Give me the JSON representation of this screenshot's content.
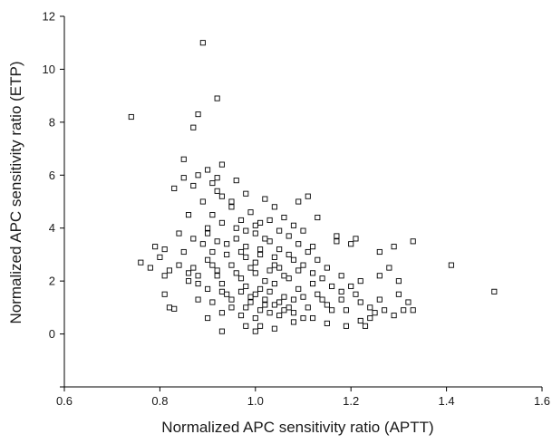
{
  "chart_data": {
    "type": "scatter",
    "xlabel": "Normalized APC sensitivity ratio (APTT)",
    "ylabel": "Normalized APC sensitivity ratio (ETP)",
    "xlim": [
      0.6,
      1.6
    ],
    "ylim": [
      -2,
      12
    ],
    "x_ticks": [
      "0.6",
      "0.8",
      "1.0",
      "1.2",
      "1.4",
      "1.6"
    ],
    "y_ticks": [
      "0",
      "2",
      "4",
      "6",
      "8",
      "10",
      "12"
    ],
    "marker": "open-square",
    "grid": false,
    "legend": "none",
    "series": [
      {
        "points": [
          [
            0.74,
            8.2
          ],
          [
            0.87,
            7.8
          ],
          [
            0.89,
            11.0
          ],
          [
            0.88,
            8.3
          ],
          [
            0.92,
            8.9
          ],
          [
            0.85,
            6.6
          ],
          [
            0.9,
            6.2
          ],
          [
            0.93,
            6.4
          ],
          [
            0.88,
            6.0
          ],
          [
            0.92,
            5.9
          ],
          [
            0.85,
            5.9
          ],
          [
            0.83,
            5.5
          ],
          [
            0.87,
            5.6
          ],
          [
            0.91,
            5.7
          ],
          [
            0.96,
            5.8
          ],
          [
            0.98,
            5.3
          ],
          [
            0.92,
            5.4
          ],
          [
            0.93,
            5.2
          ],
          [
            0.89,
            5.0
          ],
          [
            1.02,
            5.1
          ],
          [
            1.11,
            5.2
          ],
          [
            1.09,
            5.0
          ],
          [
            0.86,
            4.5
          ],
          [
            0.91,
            4.5
          ],
          [
            0.95,
            4.8
          ],
          [
            1.04,
            4.8
          ],
          [
            0.97,
            4.3
          ],
          [
            1.01,
            4.2
          ],
          [
            1.06,
            4.4
          ],
          [
            1.08,
            4.1
          ],
          [
            1.13,
            4.4
          ],
          [
            1.1,
            3.9
          ],
          [
            1.17,
            3.7
          ],
          [
            1.21,
            3.6
          ],
          [
            1.17,
            3.5
          ],
          [
            1.26,
            3.1
          ],
          [
            1.29,
            3.3
          ],
          [
            1.33,
            3.5
          ],
          [
            1.2,
            3.4
          ],
          [
            0.79,
            3.3
          ],
          [
            0.81,
            3.2
          ],
          [
            0.8,
            2.9
          ],
          [
            0.85,
            3.1
          ],
          [
            0.82,
            2.4
          ],
          [
            0.84,
            2.6
          ],
          [
            0.86,
            2.3
          ],
          [
            0.76,
            2.7
          ],
          [
            0.78,
            2.5
          ],
          [
            0.81,
            2.2
          ],
          [
            0.86,
            2.0
          ],
          [
            0.88,
            2.2
          ],
          [
            0.81,
            1.5
          ],
          [
            0.82,
            1.0
          ],
          [
            0.83,
            0.95
          ],
          [
            0.88,
            1.3
          ],
          [
            0.9,
            0.6
          ],
          [
            0.93,
            0.1
          ],
          [
            0.98,
            0.3
          ],
          [
            1.0,
            0.1
          ],
          [
            1.01,
            0.3
          ],
          [
            1.04,
            0.2
          ],
          [
            1.08,
            0.45
          ],
          [
            1.12,
            0.6
          ],
          [
            1.15,
            0.4
          ],
          [
            1.19,
            0.3
          ],
          [
            1.22,
            0.5
          ],
          [
            1.23,
            0.3
          ],
          [
            1.24,
            0.6
          ],
          [
            1.27,
            0.9
          ],
          [
            1.31,
            0.9
          ],
          [
            1.33,
            0.9
          ],
          [
            1.29,
            0.7
          ],
          [
            1.26,
            1.3
          ],
          [
            1.3,
            1.5
          ],
          [
            1.32,
            1.2
          ],
          [
            1.3,
            2.0
          ],
          [
            1.28,
            2.5
          ],
          [
            1.26,
            2.2
          ],
          [
            1.22,
            2.0
          ],
          [
            1.18,
            2.2
          ],
          [
            1.2,
            1.8
          ],
          [
            1.21,
            1.5
          ],
          [
            1.24,
            1.0
          ],
          [
            1.41,
            2.6
          ],
          [
            1.5,
            1.6
          ],
          [
            0.9,
            3.8
          ],
          [
            0.92,
            3.5
          ],
          [
            0.94,
            3.0
          ],
          [
            0.96,
            3.6
          ],
          [
            0.98,
            3.3
          ],
          [
            1.0,
            3.8
          ],
          [
            1.03,
            3.5
          ],
          [
            1.05,
            3.2
          ],
          [
            1.07,
            3.0
          ],
          [
            1.09,
            3.4
          ],
          [
            1.11,
            3.1
          ],
          [
            1.13,
            2.8
          ],
          [
            1.15,
            2.5
          ],
          [
            0.9,
            2.8
          ],
          [
            0.95,
            2.6
          ],
          [
            1.0,
            2.7
          ],
          [
            1.05,
            2.5
          ],
          [
            1.1,
            2.6
          ],
          [
            1.12,
            2.3
          ],
          [
            0.92,
            2.2
          ],
          [
            0.97,
            2.1
          ],
          [
            1.02,
            2.0
          ],
          [
            1.07,
            2.1
          ],
          [
            1.12,
            1.9
          ],
          [
            1.16,
            1.8
          ],
          [
            0.9,
            1.7
          ],
          [
            0.94,
            1.5
          ],
          [
            0.98,
            1.8
          ],
          [
            1.03,
            1.6
          ],
          [
            1.06,
            1.4
          ],
          [
            1.09,
            1.7
          ],
          [
            1.13,
            1.5
          ],
          [
            1.18,
            1.3
          ],
          [
            0.91,
            1.2
          ],
          [
            0.95,
            1.0
          ],
          [
            0.99,
            1.2
          ],
          [
            1.01,
            0.9
          ],
          [
            1.04,
            1.1
          ],
          [
            1.08,
            0.8
          ],
          [
            1.11,
            1.0
          ],
          [
            1.15,
            1.1
          ],
          [
            1.19,
            0.9
          ],
          [
            0.93,
            0.8
          ],
          [
            0.97,
            0.7
          ],
          [
            1.0,
            0.6
          ],
          [
            1.05,
            0.7
          ],
          [
            1.1,
            0.6
          ],
          [
            0.96,
            4.0
          ],
          [
            1.0,
            4.1
          ],
          [
            1.05,
            3.9
          ],
          [
            0.93,
            4.2
          ],
          [
            0.98,
            3.9
          ],
          [
            1.02,
            3.6
          ],
          [
            1.07,
            3.7
          ],
          [
            1.0,
            2.3
          ],
          [
            1.03,
            2.4
          ],
          [
            1.06,
            2.2
          ],
          [
            0.99,
            1.4
          ],
          [
            1.02,
            1.3
          ],
          [
            1.05,
            1.2
          ],
          [
            1.08,
            1.3
          ],
          [
            0.88,
            1.9
          ],
          [
            0.93,
            1.9
          ],
          [
            0.97,
            1.6
          ],
          [
            1.01,
            1.7
          ],
          [
            1.04,
            1.9
          ],
          [
            0.95,
            1.3
          ],
          [
            0.98,
            1.0
          ],
          [
            1.02,
            1.1
          ],
          [
            1.07,
            1.0
          ],
          [
            0.89,
            3.4
          ],
          [
            0.91,
            3.1
          ],
          [
            0.94,
            3.4
          ],
          [
            0.97,
            3.1
          ],
          [
            1.01,
            3.2
          ],
          [
            1.04,
            2.9
          ],
          [
            1.08,
            2.8
          ],
          [
            1.12,
            3.3
          ],
          [
            0.87,
            2.5
          ],
          [
            0.92,
            2.4
          ],
          [
            0.99,
            2.5
          ],
          [
            1.04,
            2.6
          ],
          [
            1.09,
            2.4
          ],
          [
            1.14,
            2.1
          ],
          [
            1.18,
            1.6
          ],
          [
            1.22,
            1.2
          ],
          [
            1.25,
            0.8
          ],
          [
            0.95,
            5.0
          ],
          [
            0.99,
            4.6
          ],
          [
            1.03,
            4.3
          ],
          [
            0.9,
            4.0
          ],
          [
            0.87,
            3.6
          ],
          [
            0.84,
            3.8
          ],
          [
            1.14,
            1.3
          ],
          [
            1.16,
            0.9
          ],
          [
            1.1,
            1.4
          ],
          [
            0.96,
            2.3
          ],
          [
            0.93,
            1.6
          ],
          [
            0.91,
            2.6
          ],
          [
            1.0,
            1.5
          ],
          [
            1.03,
            0.8
          ],
          [
            1.06,
            0.9
          ],
          [
            0.98,
            2.9
          ],
          [
            1.01,
            3.0
          ]
        ]
      }
    ]
  }
}
